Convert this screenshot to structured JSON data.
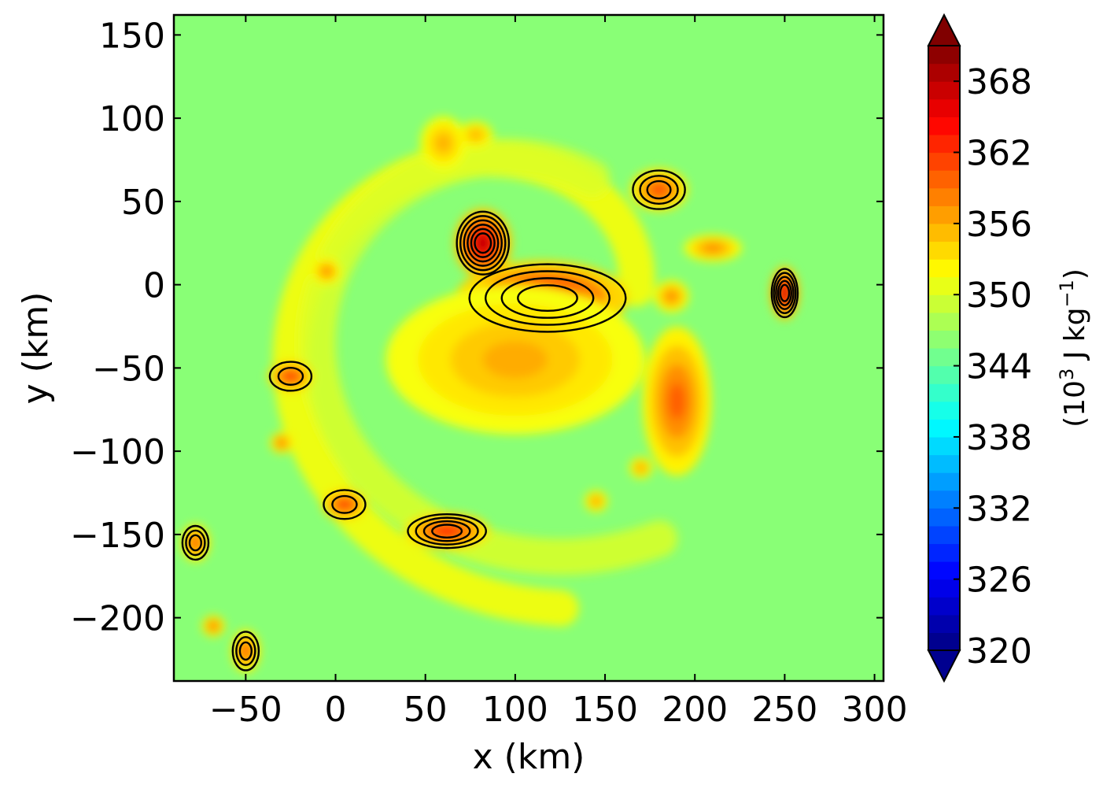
{
  "chart_data": {
    "type": "heatmap",
    "title": "",
    "xlabel": "x (km)",
    "ylabel": "y (km)",
    "xlim": [
      -90,
      305
    ],
    "ylim": [
      -238,
      162
    ],
    "x_ticks": [
      -50,
      0,
      50,
      100,
      150,
      200,
      250,
      300
    ],
    "x_tick_labels": [
      "−50",
      "0",
      "50",
      "100",
      "150",
      "200",
      "250",
      "300"
    ],
    "y_ticks": [
      150,
      100,
      50,
      0,
      -50,
      -100,
      -150,
      -200
    ],
    "y_tick_labels": [
      "150",
      "100",
      "50",
      "0",
      "−50",
      "−100",
      "−150",
      "−200"
    ],
    "colorbar": {
      "label_parts": [
        "(10",
        "3",
        "  J kg",
        "−1",
        ")"
      ],
      "range": [
        320,
        371
      ],
      "ticks": [
        368,
        362,
        356,
        350,
        344,
        338,
        332,
        326,
        320
      ],
      "tick_labels": [
        "368",
        "362",
        "356",
        "350",
        "344",
        "338",
        "332",
        "326",
        "320"
      ],
      "colormap": "jet",
      "extend": "both"
    },
    "background_value": 346,
    "features": [
      {
        "kind": "core",
        "x": 115,
        "y": -8,
        "rx": 30,
        "ry": 14,
        "value": 366
      },
      {
        "kind": "core",
        "x": 82,
        "y": 25,
        "rx": 10,
        "ry": 13,
        "value": 368
      },
      {
        "kind": "core",
        "x": 250,
        "y": -5,
        "rx": 5,
        "ry": 10,
        "value": 368
      },
      {
        "kind": "core",
        "x": 180,
        "y": 57,
        "rx": 10,
        "ry": 8,
        "value": 361
      },
      {
        "kind": "core",
        "x": 62,
        "y": -148,
        "rx": 15,
        "ry": 7,
        "value": 363
      },
      {
        "kind": "core",
        "x": 190,
        "y": -70,
        "rx": 12,
        "ry": 28,
        "value": 360
      },
      {
        "kind": "core",
        "x": 100,
        "y": -45,
        "rx": 45,
        "ry": 28,
        "value": 356
      },
      {
        "kind": "core",
        "x": 5,
        "y": -132,
        "rx": 8,
        "ry": 6,
        "value": 362
      },
      {
        "kind": "core",
        "x": -25,
        "y": -55,
        "rx": 8,
        "ry": 6,
        "value": 362
      },
      {
        "kind": "core",
        "x": -78,
        "y": -155,
        "rx": 5,
        "ry": 7,
        "value": 360
      },
      {
        "kind": "core",
        "x": -50,
        "y": -220,
        "rx": 5,
        "ry": 8,
        "value": 360
      },
      {
        "kind": "core",
        "x": -68,
        "y": -205,
        "rx": 4,
        "ry": 4,
        "value": 359
      },
      {
        "kind": "core",
        "x": -30,
        "y": -95,
        "rx": 4,
        "ry": 4,
        "value": 359
      },
      {
        "kind": "core",
        "x": -5,
        "y": 8,
        "rx": 5,
        "ry": 5,
        "value": 358
      },
      {
        "kind": "core",
        "x": 210,
        "y": 22,
        "rx": 10,
        "ry": 5,
        "value": 358
      },
      {
        "kind": "core",
        "x": 187,
        "y": -7,
        "rx": 6,
        "ry": 6,
        "value": 358
      },
      {
        "kind": "core",
        "x": 145,
        "y": -130,
        "rx": 4,
        "ry": 4,
        "value": 357
      },
      {
        "kind": "core",
        "x": 170,
        "y": -110,
        "rx": 4,
        "ry": 4,
        "value": 357
      },
      {
        "kind": "core",
        "x": 60,
        "y": 85,
        "rx": 8,
        "ry": 10,
        "value": 356
      },
      {
        "kind": "core",
        "x": 78,
        "y": 90,
        "rx": 6,
        "ry": 5,
        "value": 356
      }
    ],
    "spiral_bands": [
      {
        "cx": 110,
        "cy": -20,
        "r0": 60,
        "r1": 175,
        "theta0": 0.3,
        "theta1": 4.8,
        "value": 352
      },
      {
        "cx": 110,
        "cy": -20,
        "r0": 90,
        "r1": 150,
        "theta0": 1.2,
        "theta1": 5.2,
        "value": 350
      }
    ],
    "contour_centers": [
      {
        "x": 82,
        "y": 25,
        "levels": 6
      },
      {
        "x": 118,
        "y": -8,
        "levels": 4
      },
      {
        "x": 250,
        "y": -5,
        "levels": 5
      },
      {
        "x": 180,
        "y": 57,
        "levels": 3
      },
      {
        "x": 62,
        "y": -148,
        "levels": 4
      },
      {
        "x": -78,
        "y": -155,
        "levels": 3
      },
      {
        "x": -50,
        "y": -220,
        "levels": 3
      },
      {
        "x": -25,
        "y": -55,
        "levels": 2
      },
      {
        "x": 5,
        "y": -132,
        "levels": 2
      }
    ]
  }
}
